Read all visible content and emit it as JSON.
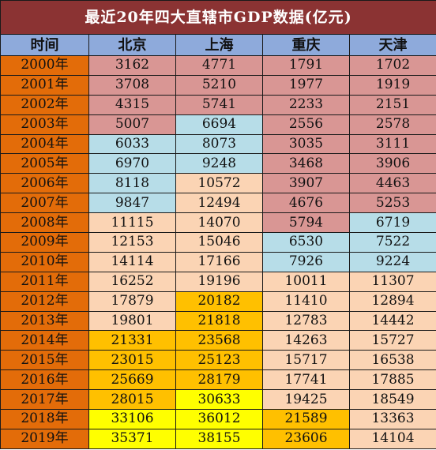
{
  "title": "最近20年四大直辖市GDP数据(亿元)",
  "headers": [
    "时间",
    "北京",
    "上海",
    "重庆",
    "天津"
  ],
  "colors": {
    "title_bg": "#8b3333",
    "header_bg": "#8eaadb",
    "year_bg": "#e36c09",
    "pink": "#d99694",
    "blue": "#b7dde8",
    "peach": "#fbd4b4",
    "amber": "#ffc000",
    "yellow": "#ffff00"
  },
  "rows": [
    {
      "year": "2000年",
      "values": [
        "3162",
        "4771",
        "1791",
        "1702"
      ],
      "fills": [
        "pink",
        "pink",
        "pink",
        "pink"
      ]
    },
    {
      "year": "2001年",
      "values": [
        "3708",
        "5210",
        "1977",
        "1919"
      ],
      "fills": [
        "pink",
        "pink",
        "pink",
        "pink"
      ]
    },
    {
      "year": "2002年",
      "values": [
        "4315",
        "5741",
        "2233",
        "2151"
      ],
      "fills": [
        "pink",
        "pink",
        "pink",
        "pink"
      ]
    },
    {
      "year": "2003年",
      "values": [
        "5007",
        "6694",
        "2556",
        "2578"
      ],
      "fills": [
        "pink",
        "blue",
        "pink",
        "pink"
      ]
    },
    {
      "year": "2004年",
      "values": [
        "6033",
        "8073",
        "3035",
        "3111"
      ],
      "fills": [
        "blue",
        "blue",
        "pink",
        "pink"
      ]
    },
    {
      "year": "2005年",
      "values": [
        "6970",
        "9248",
        "3468",
        "3906"
      ],
      "fills": [
        "blue",
        "blue",
        "pink",
        "pink"
      ]
    },
    {
      "year": "2006年",
      "values": [
        "8118",
        "10572",
        "3907",
        "4463"
      ],
      "fills": [
        "blue",
        "peach",
        "pink",
        "pink"
      ]
    },
    {
      "year": "2007年",
      "values": [
        "9847",
        "12494",
        "4676",
        "5253"
      ],
      "fills": [
        "blue",
        "peach",
        "pink",
        "pink"
      ]
    },
    {
      "year": "2008年",
      "values": [
        "11115",
        "14070",
        "5794",
        "6719"
      ],
      "fills": [
        "peach",
        "peach",
        "pink",
        "blue"
      ]
    },
    {
      "year": "2009年",
      "values": [
        "12153",
        "15046",
        "6530",
        "7522"
      ],
      "fills": [
        "peach",
        "peach",
        "blue",
        "blue"
      ]
    },
    {
      "year": "2010年",
      "values": [
        "14114",
        "17166",
        "7926",
        "9224"
      ],
      "fills": [
        "peach",
        "peach",
        "blue",
        "blue"
      ]
    },
    {
      "year": "2011年",
      "values": [
        "16252",
        "19196",
        "10011",
        "11307"
      ],
      "fills": [
        "peach",
        "peach",
        "peach",
        "peach"
      ]
    },
    {
      "year": "2012年",
      "values": [
        "17879",
        "20182",
        "11410",
        "12894"
      ],
      "fills": [
        "peach",
        "amber",
        "peach",
        "peach"
      ]
    },
    {
      "year": "2013年",
      "values": [
        "19801",
        "21818",
        "12783",
        "14442"
      ],
      "fills": [
        "peach",
        "amber",
        "peach",
        "peach"
      ]
    },
    {
      "year": "2014年",
      "values": [
        "21331",
        "23568",
        "14263",
        "15727"
      ],
      "fills": [
        "amber",
        "amber",
        "peach",
        "peach"
      ]
    },
    {
      "year": "2015年",
      "values": [
        "23015",
        "25123",
        "15717",
        "16538"
      ],
      "fills": [
        "amber",
        "amber",
        "peach",
        "peach"
      ]
    },
    {
      "year": "2016年",
      "values": [
        "25669",
        "28179",
        "17741",
        "17885"
      ],
      "fills": [
        "amber",
        "amber",
        "peach",
        "peach"
      ]
    },
    {
      "year": "2017年",
      "values": [
        "28015",
        "30633",
        "19425",
        "18549"
      ],
      "fills": [
        "amber",
        "yellow",
        "peach",
        "peach"
      ]
    },
    {
      "year": "2018年",
      "values": [
        "33106",
        "36012",
        "21589",
        "13363"
      ],
      "fills": [
        "yellow",
        "yellow",
        "amber",
        "peach"
      ]
    },
    {
      "year": "2019年",
      "values": [
        "35371",
        "38155",
        "23606",
        "14104"
      ],
      "fills": [
        "yellow",
        "yellow",
        "amber",
        "peach"
      ]
    }
  ]
}
